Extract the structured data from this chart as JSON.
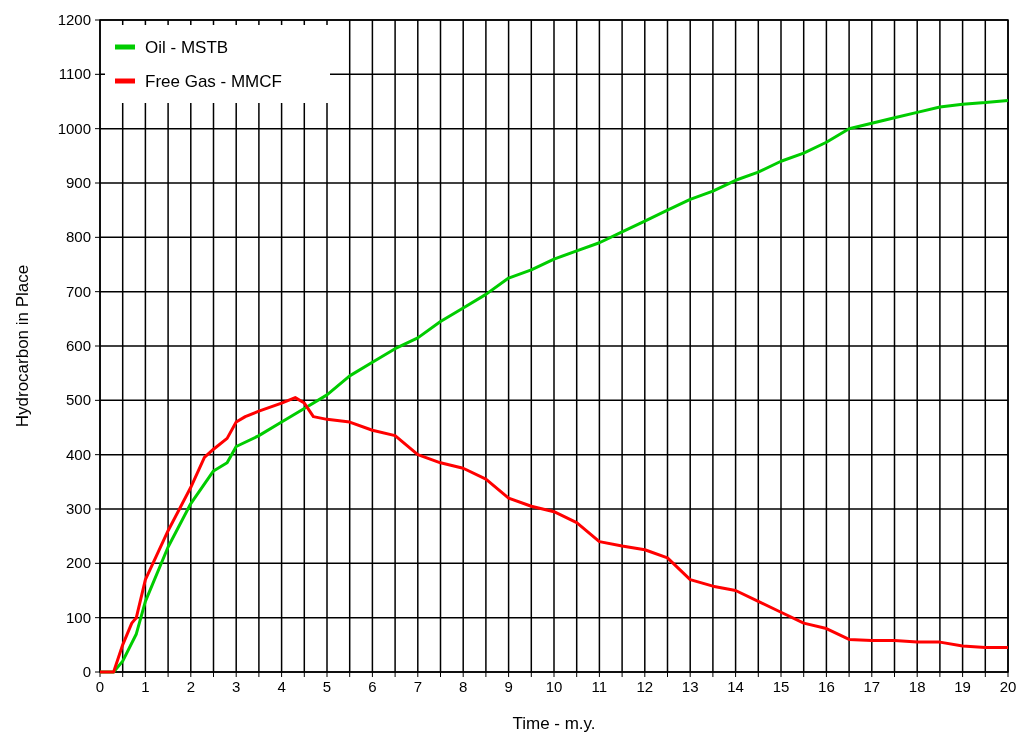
{
  "chart_data": {
    "type": "line",
    "xlabel": "Time - m.y.",
    "ylabel": "Hydrocarbon in Place",
    "xlim": [
      0,
      20
    ],
    "ylim": [
      0,
      1200
    ],
    "xticks": [
      0,
      {
        "value": 0.5,
        "label": null
      },
      1,
      {
        "value": 1.5,
        "label": null
      },
      2,
      {
        "value": 2.5,
        "label": null
      },
      3,
      {
        "value": 3.5,
        "label": null
      },
      4,
      {
        "value": 4.5,
        "label": null
      },
      5,
      {
        "value": 5.5,
        "label": null
      },
      6,
      {
        "value": 6.5,
        "label": null
      },
      7,
      {
        "value": 7.5,
        "label": null
      },
      8,
      {
        "value": 8.5,
        "label": null
      },
      9,
      {
        "value": 9.5,
        "label": null
      },
      10,
      {
        "value": 10.5,
        "label": null
      },
      11,
      {
        "value": 11.5,
        "label": null
      },
      12,
      {
        "value": 12.5,
        "label": null
      },
      13,
      {
        "value": 13.5,
        "label": null
      },
      14,
      {
        "value": 14.5,
        "label": null
      },
      15,
      {
        "value": 15.5,
        "label": null
      },
      16,
      {
        "value": 16.5,
        "label": null
      },
      17,
      {
        "value": 17.5,
        "label": null
      },
      18,
      {
        "value": 18.5,
        "label": null
      },
      19,
      {
        "value": 19.5,
        "label": null
      },
      20
    ],
    "yticks": [
      0,
      100,
      200,
      300,
      400,
      500,
      600,
      700,
      800,
      900,
      1000,
      1100,
      1200
    ],
    "grid": true,
    "legend": "top left",
    "marker": "none",
    "line_style": "solid",
    "series": [
      {
        "name": "Oil - MSTB",
        "color": "#00cc00",
        "x": [
          0,
          0.3,
          0.5,
          0.8,
          1,
          1.5,
          2,
          2.5,
          2.8,
          3,
          3.5,
          4,
          4.5,
          5,
          5.5,
          6,
          6.5,
          7,
          7.5,
          8,
          8.5,
          9,
          9.5,
          10,
          10.5,
          11,
          11.5,
          12,
          12.5,
          13,
          13.5,
          14,
          14.5,
          15,
          15.5,
          16,
          16.5,
          17,
          17.5,
          18,
          18.5,
          19,
          19.5,
          20
        ],
        "values": [
          0,
          0,
          20,
          70,
          130,
          230,
          310,
          370,
          385,
          415,
          435,
          460,
          485,
          510,
          545,
          570,
          595,
          615,
          645,
          670,
          695,
          725,
          740,
          760,
          775,
          790,
          810,
          830,
          850,
          870,
          885,
          905,
          920,
          940,
          955,
          975,
          1000,
          1010,
          1020,
          1030,
          1040,
          1045,
          1048,
          1052
        ]
      },
      {
        "name": "Free Gas - MMCF",
        "color": "#ff0000",
        "x": [
          0,
          0.3,
          0.5,
          0.7,
          0.8,
          1,
          1.5,
          2,
          2.3,
          2.5,
          2.8,
          3,
          3.2,
          3.5,
          4,
          4.3,
          4.5,
          4.7,
          5,
          5.5,
          6,
          6.5,
          7,
          7.5,
          8,
          8.5,
          9,
          9.5,
          10,
          10.5,
          11,
          11.5,
          12,
          12.5,
          13,
          13.5,
          14,
          14.5,
          15,
          15.5,
          16,
          16.5,
          17,
          17.5,
          18,
          18.5,
          19,
          19.5,
          20
        ],
        "values": [
          0,
          0,
          50,
          90,
          100,
          170,
          260,
          340,
          395,
          410,
          430,
          460,
          470,
          480,
          495,
          505,
          495,
          470,
          465,
          460,
          445,
          435,
          400,
          385,
          375,
          355,
          320,
          305,
          295,
          275,
          240,
          232,
          225,
          210,
          170,
          158,
          150,
          130,
          110,
          90,
          80,
          60,
          58,
          58,
          55,
          55,
          48,
          45,
          45
        ]
      }
    ]
  }
}
